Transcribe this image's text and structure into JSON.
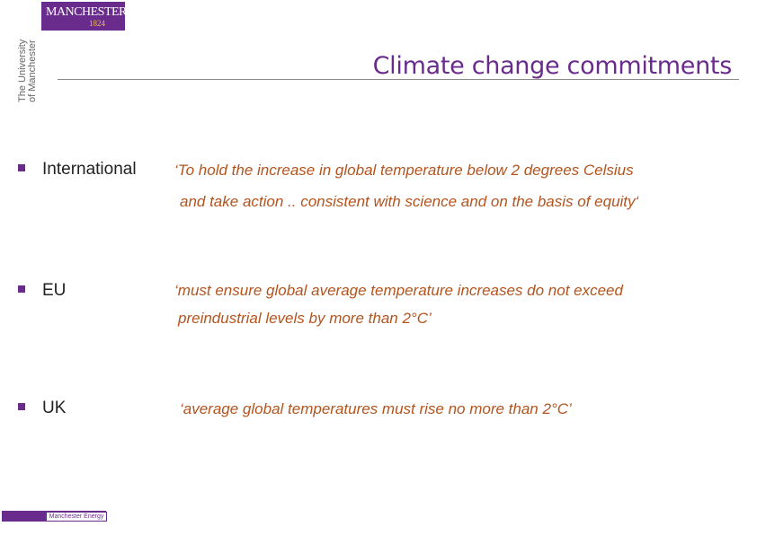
{
  "brand": {
    "logo_main": "MANCHESTER",
    "logo_year": "1824",
    "university_line1": "The University",
    "university_line2": "of Manchester",
    "primary_color": "#6a2c8c",
    "quote_color": "#b3541e"
  },
  "slide": {
    "title": "Climate change commitments"
  },
  "items": [
    {
      "label": "International",
      "quote_line1": "‘To hold the increase in global temperature below 2 degrees Celsius",
      "quote_line2": "and take action .. consistent with science and on the basis of equity‘"
    },
    {
      "label": "EU",
      "quote_line1": "‘must ensure global average temperature increases do  not exceed",
      "quote_line2": "preindustrial levels by more than 2°C’"
    },
    {
      "label": "UK",
      "quote_line1": "‘average global temperatures must rise no more than 2°C’"
    }
  ],
  "footer": {
    "label": "Manchester Energy"
  }
}
